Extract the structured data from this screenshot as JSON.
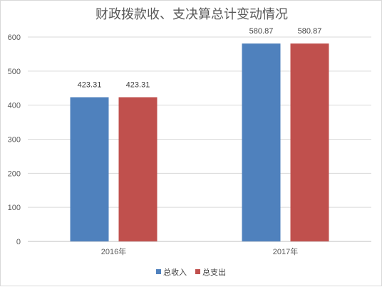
{
  "chart_data": {
    "type": "bar",
    "title": "财政拨款收、支决算总计变动情况",
    "categories": [
      "2016年",
      "2017年"
    ],
    "series": [
      {
        "name": "总收入",
        "values": [
          423.31,
          580.87
        ],
        "color": "#4f81bd"
      },
      {
        "name": "总支出",
        "values": [
          423.31,
          580.87
        ],
        "color": "#c0504d"
      }
    ],
    "data_labels": [
      [
        "423.31",
        "580.87"
      ],
      [
        "423.31",
        "580.87"
      ]
    ],
    "ylim": [
      0,
      600
    ],
    "yticks": [
      0,
      100,
      200,
      300,
      400,
      500,
      600
    ],
    "grid": true,
    "legend_position": "bottom"
  }
}
